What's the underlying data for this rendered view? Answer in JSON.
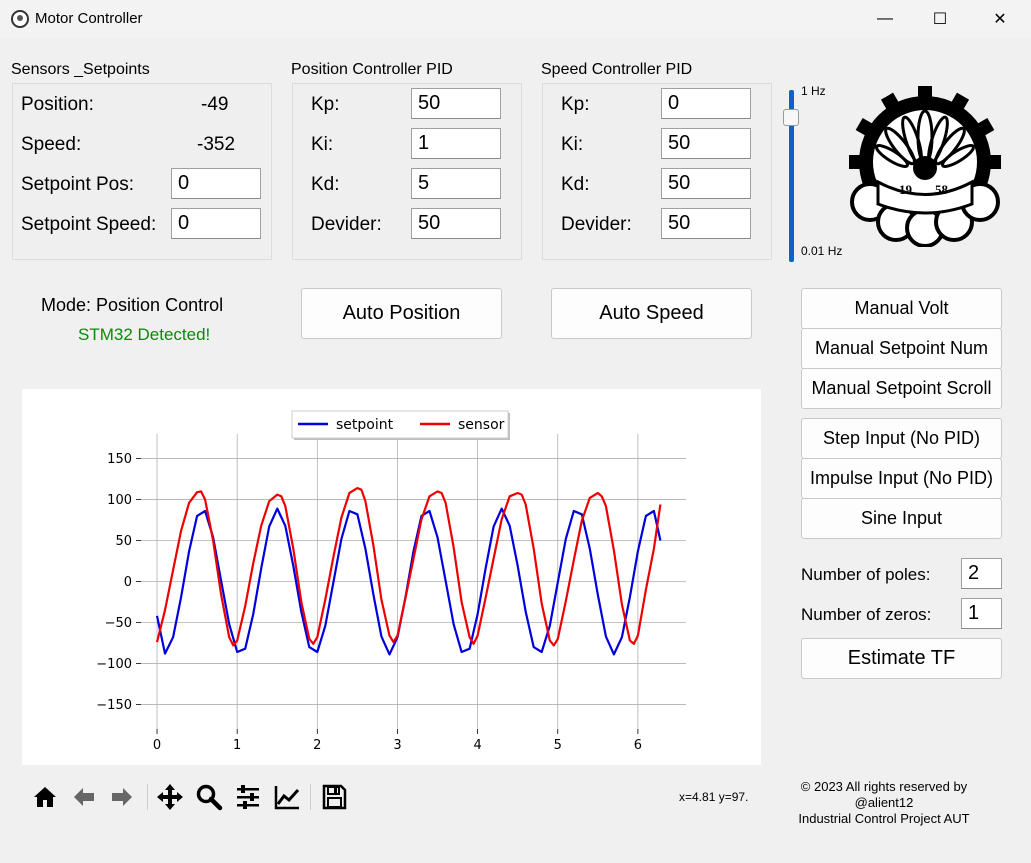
{
  "window": {
    "title": "Motor Controller",
    "controls": {
      "minimize": "—",
      "maximize": "☐",
      "close": "✕"
    }
  },
  "sensors": {
    "title": "Sensors _Setpoints",
    "position_label": "Position:",
    "position_value": "-49",
    "speed_label": "Speed:",
    "speed_value": "-352",
    "setpoint_pos_label": "Setpoint Pos:",
    "setpoint_pos_value": "0",
    "setpoint_speed_label": "Setpoint Speed:",
    "setpoint_speed_value": "0"
  },
  "position_pid": {
    "title": "Position Controller PID",
    "kp_label": "Kp:",
    "kp_value": "50",
    "ki_label": "Ki:",
    "ki_value": "1",
    "kd_label": "Kd:",
    "kd_value": "5",
    "devider_label": "Devider:",
    "devider_value": "50"
  },
  "speed_pid": {
    "title": "Speed Controller PID",
    "kp_label": "Kp:",
    "kp_value": "0",
    "ki_label": "Ki:",
    "ki_value": "50",
    "kd_label": "Kd:",
    "kd_value": "50",
    "devider_label": "Devider:",
    "devider_value": "50"
  },
  "frequency_slider": {
    "max_label": "1 Hz",
    "min_label": "0.01 Hz",
    "level_fraction": 0.9,
    "color": "#0a63c9"
  },
  "status": {
    "mode": "Mode: Position Control",
    "device": "STM32 Detected!",
    "device_color": "#0a8a0a"
  },
  "buttons": {
    "auto_position": "Auto Position",
    "auto_speed": "Auto Speed",
    "manual_volt": "Manual Volt",
    "manual_setpoint_num": "Manual Setpoint Num",
    "manual_setpoint_scroll": "Manual Setpoint Scroll",
    "step_input": "Step Input (No PID)",
    "impulse_input": "Impulse Input (No PID)",
    "sine_input": "Sine Input",
    "estimate_tf": "Estimate TF"
  },
  "tf": {
    "poles_label": "Number of poles:",
    "poles_value": "2",
    "zeros_label": "Number of zeros:",
    "zeros_value": "1"
  },
  "toolbar": {
    "icons": [
      "home-icon",
      "back-icon",
      "forward-icon",
      "pan-icon",
      "zoom-icon",
      "configure-subplots-icon",
      "edit-axis-icon",
      "save-icon"
    ],
    "coords": "x=4.81 y=97."
  },
  "footer": {
    "copyright": "© 2023 All rights reserved by @alient12",
    "project": "Industrial Control Project AUT"
  },
  "chart_data": {
    "type": "line",
    "xlim": [
      -0.2,
      6.6
    ],
    "ylim": [
      -180,
      180
    ],
    "x_ticks": [
      0,
      1,
      2,
      3,
      4,
      5,
      6
    ],
    "y_ticks": [
      150,
      100,
      50,
      0,
      -50,
      -100,
      -150
    ],
    "y_tick_labels": [
      "150",
      "100",
      "50",
      "0",
      "−50",
      "−100",
      "−150"
    ],
    "grid": true,
    "legend_position": "top-center",
    "series": [
      {
        "name": "setpoint",
        "color": "#0000dd",
        "x": [
          0,
          0.1,
          0.2,
          0.3,
          0.4,
          0.5,
          0.6,
          0.7,
          0.8,
          0.9,
          1.0,
          1.1,
          1.2,
          1.3,
          1.4,
          1.5,
          1.6,
          1.7,
          1.8,
          1.9,
          2.0,
          2.1,
          2.2,
          2.3,
          2.4,
          2.5,
          2.6,
          2.7,
          2.8,
          2.9,
          3.0,
          3.1,
          3.2,
          3.3,
          3.4,
          3.5,
          3.6,
          3.7,
          3.8,
          3.9,
          4.0,
          4.1,
          4.2,
          4.3,
          4.4,
          4.5,
          4.6,
          4.7,
          4.8,
          4.9,
          5.0,
          5.1,
          5.2,
          5.3,
          5.4,
          5.5,
          5.6,
          5.7,
          5.8,
          5.9,
          6.0,
          6.1,
          6.2,
          6.28
        ],
        "y": [
          -42,
          -88,
          -68,
          -19,
          37,
          80,
          86,
          54,
          1,
          -52,
          -86,
          -82,
          -40,
          16,
          67,
          89,
          68,
          19,
          -37,
          -80,
          -86,
          -54,
          -1,
          52,
          86,
          82,
          40,
          -16,
          -67,
          -89,
          -68,
          -19,
          37,
          80,
          86,
          54,
          1,
          -52,
          -86,
          -82,
          -40,
          16,
          67,
          89,
          68,
          19,
          -37,
          -80,
          -86,
          -54,
          -1,
          52,
          86,
          82,
          40,
          -16,
          -67,
          -89,
          -68,
          -19,
          37,
          80,
          86,
          50
        ]
      },
      {
        "name": "sensor",
        "color": "#ee0000",
        "x": [
          0,
          0.1,
          0.2,
          0.3,
          0.4,
          0.5,
          0.55,
          0.6,
          0.7,
          0.8,
          0.9,
          0.95,
          1.0,
          1.1,
          1.2,
          1.3,
          1.4,
          1.5,
          1.55,
          1.6,
          1.7,
          1.8,
          1.9,
          1.95,
          2.0,
          2.1,
          2.2,
          2.3,
          2.4,
          2.5,
          2.55,
          2.6,
          2.7,
          2.8,
          2.9,
          2.95,
          3.0,
          3.1,
          3.2,
          3.3,
          3.4,
          3.5,
          3.55,
          3.6,
          3.7,
          3.8,
          3.9,
          3.95,
          4.0,
          4.1,
          4.2,
          4.3,
          4.4,
          4.5,
          4.55,
          4.6,
          4.7,
          4.8,
          4.9,
          4.95,
          5.0,
          5.1,
          5.2,
          5.3,
          5.4,
          5.5,
          5.55,
          5.6,
          5.7,
          5.8,
          5.9,
          5.95,
          6.0,
          6.1,
          6.2,
          6.28
        ],
        "y": [
          -74,
          -35,
          14,
          62,
          96,
          109,
          110,
          100,
          50,
          -16,
          -68,
          -78,
          -72,
          -30,
          22,
          68,
          98,
          106,
          104,
          92,
          40,
          -25,
          -70,
          -76,
          -68,
          -22,
          30,
          78,
          108,
          114,
          112,
          98,
          44,
          -22,
          -66,
          -74,
          -66,
          -20,
          28,
          76,
          104,
          110,
          108,
          96,
          42,
          -25,
          -68,
          -76,
          -66,
          -20,
          28,
          76,
          104,
          108,
          106,
          94,
          40,
          -27,
          -72,
          -78,
          -70,
          -24,
          26,
          74,
          102,
          108,
          104,
          92,
          38,
          -28,
          -72,
          -76,
          -66,
          -10,
          40,
          94
        ]
      }
    ]
  }
}
